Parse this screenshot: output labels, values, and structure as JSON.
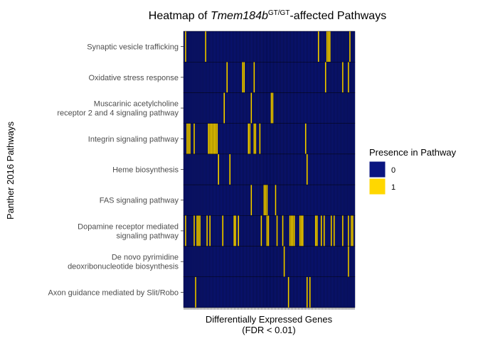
{
  "chart_data": {
    "type": "heatmap",
    "title_prefix": "Heatmap of ",
    "title_gene": "Tmem184b",
    "title_sup": "GT/GT",
    "title_suffix": "-affected Pathways",
    "xlabel_line1": "Differentially Expressed Genes",
    "xlabel_line2": "(FDR < 0.01)",
    "ylabel": "Panther 2016 Pathways",
    "n_genes": 120,
    "rows": [
      {
        "label": [
          "Synaptic vesicle trafficking"
        ],
        "present": [
          1,
          15,
          94,
          100,
          101,
          102,
          116
        ]
      },
      {
        "label": [
          "Oxidative stress response"
        ],
        "present": [
          30,
          41,
          42,
          49,
          99,
          111,
          115
        ]
      },
      {
        "label": [
          "Muscarinic acetylcholine",
          "receptor 2 and 4 signaling pathway"
        ],
        "present": [
          28,
          47,
          61,
          62
        ]
      },
      {
        "label": [
          "Integrin signaling pathway"
        ],
        "present": [
          2,
          3,
          4,
          7,
          17,
          18,
          19,
          20,
          21,
          22,
          23,
          45,
          46,
          49,
          50,
          53,
          85
        ]
      },
      {
        "label": [
          "Heme biosynthesis"
        ],
        "present": [
          24,
          32,
          86
        ]
      },
      {
        "label": [
          "FAS signaling pathway"
        ],
        "present": [
          47,
          56,
          57,
          58,
          64
        ]
      },
      {
        "label": [
          "Dopamine receptor mediated",
          "signaling pathway"
        ],
        "present": [
          1,
          7,
          9,
          10,
          11,
          16,
          18,
          27,
          35,
          36,
          38,
          54,
          58,
          59,
          65,
          69,
          74,
          75,
          76,
          77,
          81,
          82,
          83,
          92,
          93,
          96,
          98,
          103,
          105,
          111,
          115,
          117,
          118
        ]
      },
      {
        "label": [
          "De novo pyrimidine",
          "deoxribonucleotide biosynthesis"
        ],
        "present": [
          70,
          115
        ]
      },
      {
        "label": [
          "Axon guidance mediated by Slit/Robo"
        ],
        "present": [
          8,
          73,
          86,
          88
        ]
      }
    ],
    "legend": {
      "title": "Presence in Pathway",
      "entries": [
        {
          "label": "0",
          "color": "#0A1580"
        },
        {
          "label": "1",
          "color": "#FFD700"
        }
      ]
    },
    "colors": {
      "absent": "#0A1580",
      "present": "#FFD700",
      "tile_border": "#000000"
    }
  }
}
